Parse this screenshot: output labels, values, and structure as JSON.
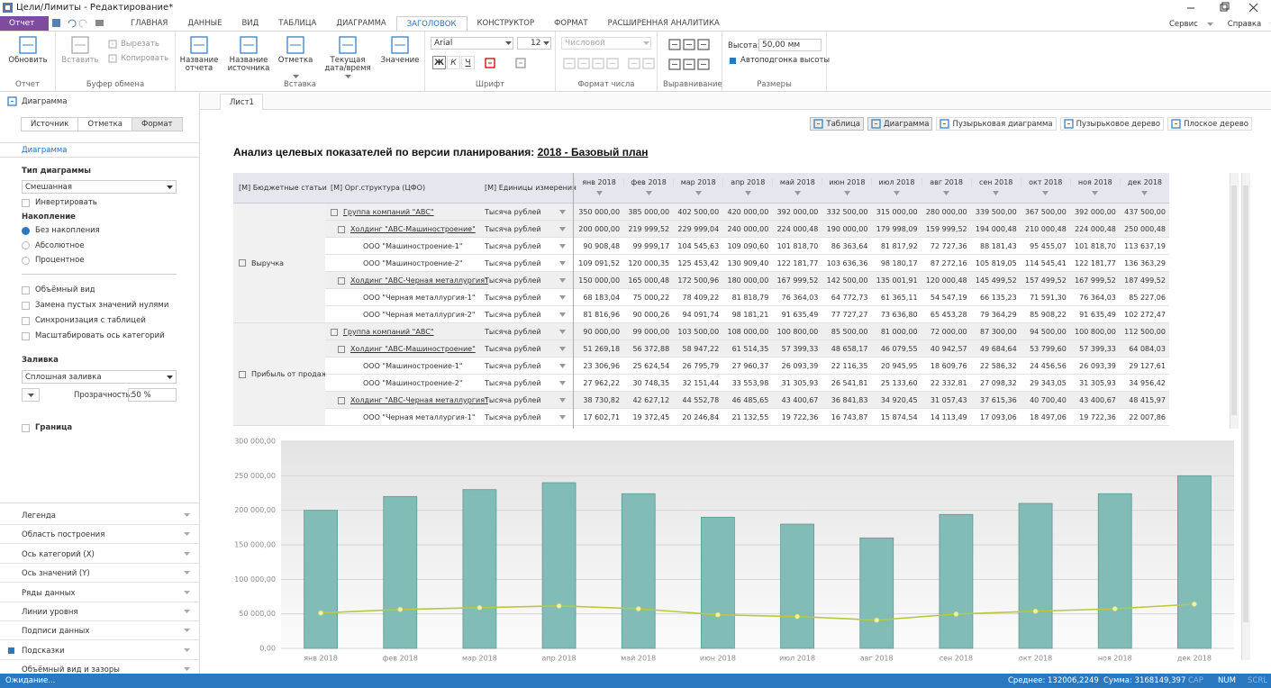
{
  "window": {
    "title": "Цели/Лимиты - Редактирование*",
    "menu": "Отчет",
    "tabs": [
      "ГЛАВНАЯ",
      "ДАННЫЕ",
      "ВИД",
      "ТАБЛИЦА",
      "ДИАГРАММА",
      "ЗАГОЛОВОК",
      "КОНСТРУКТОР",
      "ФОРМАТ",
      "РАСШИРЕННАЯ АНАЛИТИКА"
    ],
    "right_menu": [
      "Сервис",
      "Справка"
    ]
  },
  "ribbon": {
    "report": {
      "label": "Отчет",
      "button": "Обновить"
    },
    "clipboard": {
      "label": "Буфер обмена",
      "button": "Вставить",
      "small": [
        "Вырезать",
        "Копировать"
      ]
    },
    "insert": {
      "label": "Вставка",
      "buttons": [
        "Название отчета",
        "Название источника",
        "Отметка",
        "Текущая дата/время",
        "Значение"
      ]
    },
    "font": {
      "label": "Шрифт",
      "name": "Arial",
      "size": "12",
      "styles": [
        "Ж",
        "К",
        "Ч"
      ]
    },
    "number_format": {
      "label": "Формат числа",
      "format": "Числовой"
    },
    "alignment": {
      "label": "Выравнивание"
    },
    "sizes": {
      "label": "Размеры",
      "height_label": "Высота:",
      "height": "50,00 мм",
      "autofit": "Автоподгонка высоты"
    }
  },
  "left_panel": {
    "title": "Диаграмма",
    "tabs": [
      "Источник",
      "Отметка",
      "Формат"
    ],
    "section": "Диаграмма",
    "chart_type_label": "Тип диаграммы",
    "chart_type": "Смешанная",
    "invert": "Инвертировать",
    "accumulation_label": "Накопление",
    "accumulation_options": [
      "Без накопления",
      "Абсолютное",
      "Процентное"
    ],
    "options": [
      "Объёмный вид",
      "Замена пустых значений нулями",
      "Синхронизация с таблицей",
      "Масштабировать ось категорий"
    ],
    "fill_label": "Заливка",
    "fill": "Сплошная заливка",
    "transparency_label": "Прозрачность:",
    "transparency": "50 %",
    "border": "Граница",
    "sections": [
      "Легенда",
      "Область построения",
      "Ось категорий (X)",
      "Ось значений (Y)",
      "Ряды данных",
      "Линии уровня",
      "Подписи данных",
      "Подсказки",
      "Объёмный вид и зазоры"
    ]
  },
  "sheet": {
    "tab": "Лист1",
    "views": [
      "Таблица",
      "Диаграмма",
      "Пузырьковая диаграмма",
      "Пузырьковое дерево",
      "Плоское дерево"
    ],
    "title": "Анализ целевых показателей по версии планирования: ",
    "title_version": "2018 - Базовый план"
  },
  "table": {
    "headers": [
      "[М] Бюджетные статьи",
      "[М] Орг.структура (ЦФО)",
      "[М] Единицы измерения"
    ],
    "months": [
      "янв 2018",
      "фев 2018",
      "мар 2018",
      "апр 2018",
      "май 2018",
      "июн 2018",
      "июл 2018",
      "авг 2018",
      "сен 2018",
      "окт 2018",
      "ноя 2018",
      "дек 2018"
    ],
    "sections": [
      {
        "label": "Выручка",
        "group": {
          "name": "Группа компаний \"АВС\"",
          "unit": "Тысяча рублей",
          "values": [
            "350 000,00",
            "385 000,00",
            "402 500,00",
            "420 000,00",
            "392 000,00",
            "332 500,00",
            "315 000,00",
            "280 000,00",
            "339 500,00",
            "367 500,00",
            "392 000,00",
            "437 500,00"
          ]
        },
        "holdings": [
          {
            "name": "Холдинг \"АВС-Машиностроение\"",
            "unit": "Тысяча рублей",
            "values": [
              "200 000,00",
              "219 999,52",
              "229 999,04",
              "240 000,00",
              "224 000,48",
              "190 000,00",
              "179 998,09",
              "159 999,52",
              "194 000,48",
              "210 000,48",
              "224 000,48",
              "250 000,48"
            ],
            "companies": [
              {
                "name": "ООО \"Машиностроение-1\"",
                "unit": "Тысяча рублей",
                "values": [
                  "90 908,48",
                  "99 999,17",
                  "104 545,63",
                  "109 090,60",
                  "101 818,70",
                  "86 363,64",
                  "81 817,92",
                  "72 727,36",
                  "88 181,43",
                  "95 455,07",
                  "101 818,70",
                  "113 637,19"
                ]
              },
              {
                "name": "ООО \"Машиностроение-2\"",
                "unit": "Тысяча рублей",
                "values": [
                  "109 091,52",
                  "120 000,35",
                  "125 453,42",
                  "130 909,40",
                  "122 181,77",
                  "103 636,36",
                  "98 180,17",
                  "87 272,16",
                  "105 819,05",
                  "114 545,41",
                  "122 181,77",
                  "136 363,29"
                ]
              }
            ]
          },
          {
            "name": "Холдинг \"АВС-Черная металлургия\"",
            "unit": "Тысяча рублей",
            "values": [
              "150 000,00",
              "165 000,48",
              "172 500,96",
              "180 000,00",
              "167 999,52",
              "142 500,00",
              "135 001,91",
              "120 000,48",
              "145 499,52",
              "157 499,52",
              "167 999,52",
              "187 499,52"
            ],
            "companies": [
              {
                "name": "ООО \"Черная металлургия-1\"",
                "unit": "Тысяча рублей",
                "values": [
                  "68 183,04",
                  "75 000,22",
                  "78 409,22",
                  "81 818,79",
                  "76 364,03",
                  "64 772,73",
                  "61 365,11",
                  "54 547,19",
                  "66 135,23",
                  "71 591,30",
                  "76 364,03",
                  "85 227,06"
                ]
              },
              {
                "name": "ООО \"Черная металлургия-2\"",
                "unit": "Тысяча рублей",
                "values": [
                  "81 816,96",
                  "90 000,26",
                  "94 091,74",
                  "98 181,21",
                  "91 635,49",
                  "77 727,27",
                  "73 636,80",
                  "65 453,28",
                  "79 364,29",
                  "85 908,22",
                  "91 635,49",
                  "102 272,47"
                ]
              }
            ]
          }
        ]
      },
      {
        "label": "Прибыль от продаж",
        "group": {
          "name": "Группа компаний \"АВС\"",
          "unit": "Тысяча рублей",
          "values": [
            "90 000,00",
            "99 000,00",
            "103 500,00",
            "108 000,00",
            "100 800,00",
            "85 500,00",
            "81 000,00",
            "72 000,00",
            "87 300,00",
            "94 500,00",
            "100 800,00",
            "112 500,00"
          ]
        },
        "holdings": [
          {
            "name": "Холдинг \"АВС-Машиностроение\"",
            "unit": "Тысяча рублей",
            "values": [
              "51 269,18",
              "56 372,88",
              "58 947,22",
              "61 514,35",
              "57 399,33",
              "48 658,17",
              "46 079,55",
              "40 942,57",
              "49 684,64",
              "53 799,60",
              "57 399,33",
              "64 084,03"
            ],
            "companies": [
              {
                "name": "ООО \"Машиностроение-1\"",
                "unit": "Тысяча рублей",
                "values": [
                  "23 306,96",
                  "25 624,54",
                  "26 795,79",
                  "27 960,37",
                  "26 093,39",
                  "22 116,35",
                  "20 945,95",
                  "18 609,76",
                  "22 586,32",
                  "24 456,56",
                  "26 093,39",
                  "29 127,61"
                ]
              },
              {
                "name": "ООО \"Машиностроение-2\"",
                "unit": "Тысяча рублей",
                "values": [
                  "27 962,22",
                  "30 748,35",
                  "32 151,44",
                  "33 553,98",
                  "31 305,93",
                  "26 541,81",
                  "25 133,60",
                  "22 332,81",
                  "27 098,32",
                  "29 343,05",
                  "31 305,93",
                  "34 956,42"
                ]
              }
            ]
          },
          {
            "name": "Холдинг \"АВС-Черная металлургия\"",
            "unit": "Тысяча рублей",
            "values": [
              "38 730,82",
              "42 627,12",
              "44 552,78",
              "46 485,65",
              "43 400,67",
              "36 841,83",
              "34 920,45",
              "31 057,43",
              "37 615,36",
              "40 700,40",
              "43 400,67",
              "48 415,97"
            ],
            "companies": [
              {
                "name": "ООО \"Черная металлургия-1\"",
                "unit": "Тысяча рублей",
                "values": [
                  "17 602,71",
                  "19 372,45",
                  "20 246,84",
                  "21 132,55",
                  "19 722,36",
                  "16 743,87",
                  "15 874,54",
                  "14 113,49",
                  "17 093,06",
                  "18 497,06",
                  "19 722,36",
                  "22 007,86"
                ]
              }
            ]
          }
        ]
      }
    ]
  },
  "chart_data": {
    "type": "bar",
    "categories": [
      "янв 2018",
      "фев 2018",
      "мар 2018",
      "апр 2018",
      "май 2018",
      "июн 2018",
      "июл 2018",
      "авг 2018",
      "сен 2018",
      "окт 2018",
      "ноя 2018",
      "дек 2018"
    ],
    "series": [
      {
        "type": "bar",
        "color": "#82bcb6",
        "values": [
          200000,
          219999.52,
          229999.04,
          240000,
          224000.48,
          190000,
          179998.09,
          159999.52,
          194000.48,
          210000.48,
          224000.48,
          250000.48
        ]
      },
      {
        "type": "line",
        "color": "#b9c93c",
        "values": [
          51269.18,
          56372.88,
          58947.22,
          61514.35,
          57399.33,
          48658.17,
          46079.55,
          40942.57,
          49684.64,
          53799.6,
          57399.33,
          64084.03
        ]
      }
    ],
    "ylim": [
      0,
      300000
    ],
    "yticks": [
      {
        "value": 0,
        "label": "0,00"
      },
      {
        "value": 50000,
        "label": "50 000,00"
      },
      {
        "value": 100000,
        "label": "100 000,00"
      },
      {
        "value": 150000,
        "label": "150 000,00"
      },
      {
        "value": 200000,
        "label": "200 000,00"
      },
      {
        "value": 250000,
        "label": "250 000,00"
      },
      {
        "value": 300000,
        "label": "300 000,00"
      }
    ],
    "grid": true
  },
  "status": {
    "state": "Ожидание...",
    "average": "Среднее: 132006,2249",
    "sum": "Сумма: 3168149,397",
    "keys": [
      "CAP",
      "NUM",
      "SCRL"
    ]
  }
}
